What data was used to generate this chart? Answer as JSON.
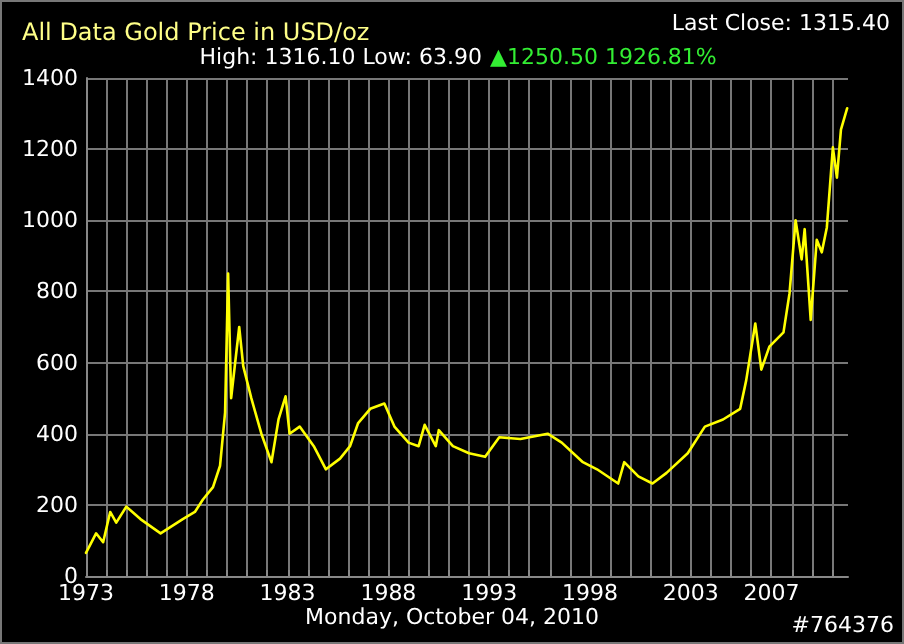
{
  "chart_data": {
    "type": "line",
    "title": "All Data Gold Price in USD/oz",
    "annotations": [
      "Last Close: 1315.40",
      "High: 1316.10 Low: 63.90",
      "▲1250.50 1926.81%",
      "Monday, October 04, 2010",
      "#764376"
    ],
    "series": [
      {
        "color": "#ffff00",
        "x": [
          1973.0,
          1973.5,
          1973.85,
          1974.2,
          1974.5,
          1975.0,
          1975.7,
          1976.7,
          1977.8,
          1978.4,
          1978.8,
          1979.3,
          1979.65,
          1979.9,
          1980.05,
          1980.2,
          1980.6,
          1980.8,
          1981.2,
          1981.7,
          1982.2,
          1982.55,
          1982.9,
          1983.1,
          1983.6,
          1984.3,
          1984.9,
          1985.6,
          1986.1,
          1986.5,
          1987.1,
          1987.8,
          1988.3,
          1989.0,
          1989.5,
          1989.8,
          1990.35,
          1990.5,
          1991.2,
          1992.0,
          1992.8,
          1993.5,
          1994.55,
          1995.9,
          1996.6,
          1997.65,
          1998.35,
          1999.4,
          1999.7,
          2000.4,
          2001.1,
          2001.8,
          2002.85,
          2003.7,
          2004.6,
          2005.45,
          2005.75,
          2006.2,
          2006.5,
          2006.9,
          2007.6,
          2007.9,
          2008.2,
          2008.5,
          2008.65,
          2008.95,
          2009.25,
          2009.5,
          2009.75,
          2010.05,
          2010.25,
          2010.45,
          2010.76
        ],
        "values": [
          65,
          120,
          95,
          180,
          150,
          195,
          160,
          120,
          160,
          180,
          215,
          250,
          310,
          460,
          850,
          500,
          700,
          590,
          500,
          400,
          320,
          440,
          505,
          400,
          420,
          365,
          300,
          330,
          365,
          430,
          470,
          485,
          420,
          375,
          365,
          425,
          365,
          410,
          365,
          345,
          335,
          390,
          385,
          400,
          375,
          320,
          300,
          260,
          320,
          280,
          260,
          290,
          345,
          420,
          440,
          470,
          550,
          710,
          580,
          645,
          685,
          795,
          1000,
          890,
          975,
          720,
          945,
          910,
          980,
          1205,
          1120,
          1255,
          1315
        ]
      }
    ],
    "xlim": [
      1973,
      2010.8
    ],
    "xticks": [
      1973,
      {
        "value": 1974,
        "label": null
      },
      {
        "value": 1975,
        "label": null
      },
      {
        "value": 1976,
        "label": null
      },
      {
        "value": 1977,
        "label": null
      },
      1978,
      {
        "value": 1979,
        "label": null
      },
      {
        "value": 1980,
        "label": null
      },
      {
        "value": 1981,
        "label": null
      },
      {
        "value": 1982,
        "label": null
      },
      1983,
      {
        "value": 1984,
        "label": null
      },
      {
        "value": 1985,
        "label": null
      },
      {
        "value": 1986,
        "label": null
      },
      {
        "value": 1987,
        "label": null
      },
      1988,
      {
        "value": 1989,
        "label": null
      },
      {
        "value": 1990,
        "label": null
      },
      {
        "value": 1991,
        "label": null
      },
      {
        "value": 1992,
        "label": null
      },
      1993,
      {
        "value": 1994,
        "label": null
      },
      {
        "value": 1995,
        "label": null
      },
      {
        "value": 1996,
        "label": null
      },
      {
        "value": 1997,
        "label": null
      },
      1998,
      {
        "value": 1999,
        "label": null
      },
      {
        "value": 2000,
        "label": null
      },
      {
        "value": 2001,
        "label": null
      },
      {
        "value": 2002,
        "label": null
      },
      2003,
      {
        "value": 2004,
        "label": null
      },
      {
        "value": 2005,
        "label": null
      },
      {
        "value": 2006,
        "label": null
      },
      2007,
      {
        "value": 2008,
        "label": null
      },
      {
        "value": 2009,
        "label": null
      },
      {
        "value": 2010,
        "label": null
      }
    ],
    "ylim": [
      0,
      1400
    ],
    "yticks": [
      0,
      200,
      400,
      600,
      800,
      1000,
      1200,
      1400
    ],
    "grid": true,
    "marker": "none",
    "line_style": "solid"
  }
}
